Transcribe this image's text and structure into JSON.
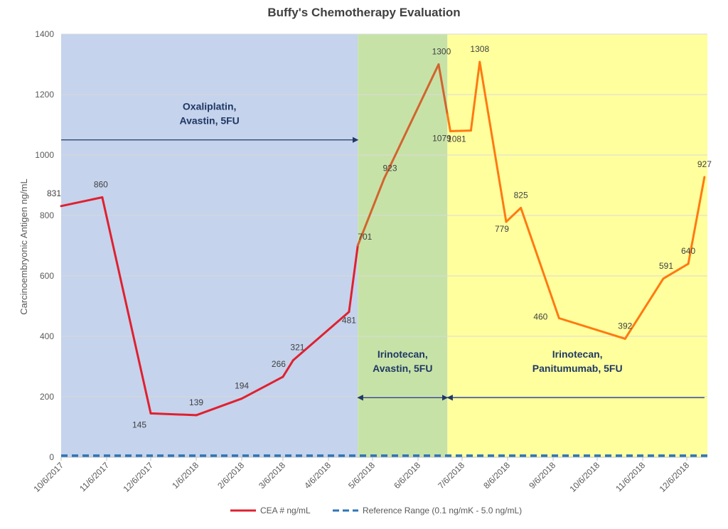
{
  "chart_data": {
    "type": "line",
    "title": "Buffy's Chemotherapy Evaluation",
    "ylabel": "Carcinoembryonic Antigen ng/mL",
    "xlabel": "",
    "ylim": [
      0,
      1400
    ],
    "yticks": [
      0,
      200,
      400,
      600,
      800,
      1000,
      1200,
      1400
    ],
    "xlim": [
      "10/6/2017",
      "12/20/2018"
    ],
    "xticks": [
      "10/6/2017",
      "11/6/2017",
      "12/6/2017",
      "1/6/2018",
      "2/6/2018",
      "3/6/2018",
      "4/6/2018",
      "5/6/2018",
      "6/6/2018",
      "7/6/2018",
      "8/6/2018",
      "9/6/2018",
      "10/6/2018",
      "11/6/2018",
      "12/6/2018"
    ],
    "grid": true,
    "series": [
      {
        "name": "CEA # ng/mL",
        "color": "#e0202f",
        "points": [
          {
            "date": "10/6/2017",
            "value": 831,
            "label": "831"
          },
          {
            "date": "11/3/2017",
            "value": 860,
            "label": "860"
          },
          {
            "date": "12/6/2017",
            "value": 145,
            "label": "145"
          },
          {
            "date": "1/6/2018",
            "value": 139,
            "label": "139"
          },
          {
            "date": "2/6/2018",
            "value": 194,
            "label": "194"
          },
          {
            "date": "3/6/2018",
            "value": 266,
            "label": "266"
          },
          {
            "date": "3/13/2018",
            "value": 321,
            "label": "321"
          },
          {
            "date": "4/20/2018",
            "value": 481,
            "label": "481"
          },
          {
            "date": "4/26/2018",
            "value": 701,
            "label": "701"
          },
          {
            "date": "5/14/2018",
            "value": 923,
            "label": "923"
          },
          {
            "date": "6/20/2018",
            "value": 1300,
            "label": "1300"
          },
          {
            "date": "6/28/2018",
            "value": 1079,
            "label": "1079"
          },
          {
            "date": "7/12/2018",
            "value": 1081,
            "label": "1081"
          },
          {
            "date": "7/18/2018",
            "value": 1308,
            "label": "1308"
          },
          {
            "date": "8/5/2018",
            "value": 779,
            "label": "779"
          },
          {
            "date": "8/15/2018",
            "value": 825,
            "label": "825"
          },
          {
            "date": "9/10/2018",
            "value": 460,
            "label": "460"
          },
          {
            "date": "10/25/2018",
            "value": 392,
            "label": "392"
          },
          {
            "date": "11/20/2018",
            "value": 591,
            "label": "591"
          },
          {
            "date": "12/7/2018",
            "value": 640,
            "label": "640"
          },
          {
            "date": "12/18/2018",
            "value": 927,
            "label": "927"
          }
        ]
      },
      {
        "name": "Reference Range (0.1 ng/mK - 5.0 ng/mL)",
        "color": "#2e75b6",
        "dashed": true,
        "points": [
          {
            "date": "10/6/2017",
            "value": 5
          },
          {
            "date": "12/20/2018",
            "value": 5
          }
        ]
      }
    ],
    "regions": [
      {
        "name": "Oxaliplatin, Avastin, 5FU",
        "lines": [
          "Oxaliplatin,",
          "Avastin, 5FU"
        ],
        "start": "10/6/2017",
        "end": "4/26/2018",
        "color": "#c5d3ec",
        "line_color": "#e0202f",
        "label_value": 1150
      },
      {
        "name": "Irinotecan, Avastin, 5FU",
        "lines": [
          "Irinotecan,",
          "Avastin, 5FU"
        ],
        "start": "4/26/2018",
        "end": "6/26/2018",
        "color": "#c7e2a7",
        "line_color": "#d2642e",
        "label_value": 330
      },
      {
        "name": "Irinotecan, Panitumumab, 5FU",
        "lines": [
          "Irinotecan,",
          "Panitumumab, 5FU"
        ],
        "start": "6/26/2018",
        "end": "12/20/2018",
        "color": "#ffff9e",
        "line_color": "#ff7a10",
        "label_value": 330
      }
    ],
    "arrows": [
      {
        "from": "10/6/2017",
        "to": "4/26/2018",
        "value": 1050,
        "heads": "end"
      },
      {
        "from": "4/26/2018",
        "to": "6/26/2018",
        "value": 197,
        "heads": "both"
      },
      {
        "from": "6/26/2018",
        "to": "12/18/2018",
        "value": 197,
        "heads": "start"
      }
    ],
    "legend": {
      "position": "bottom"
    }
  }
}
